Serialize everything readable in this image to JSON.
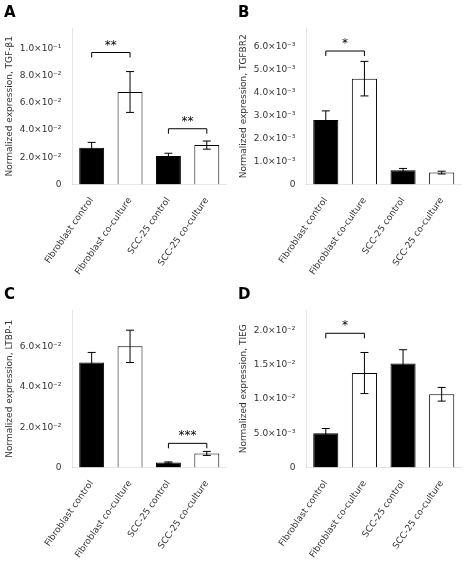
{
  "chart_data": [
    {
      "type": "bar",
      "title": "A",
      "ylabel": "Normalized expression, TGF-β1",
      "categories": [
        "Fibroblast control",
        "Fibroblast co-culture",
        "SCC-25 control",
        "SCC-25 co-culture"
      ],
      "values": [
        0.027,
        0.068,
        0.021,
        0.029
      ],
      "errors": [
        0.004,
        0.015,
        0.002,
        0.003
      ],
      "colors": [
        "black",
        "white",
        "black",
        "white"
      ],
      "ylim": [
        0,
        0.115
      ],
      "yticks": [
        0,
        {
          "value": 0.02,
          "label": "2.0×10⁻²"
        },
        {
          "value": 0.04,
          "label": "4.0×10⁻²"
        },
        {
          "value": 0.06,
          "label": "6.0×10⁻²"
        },
        {
          "value": 0.08,
          "label": "8.0×10⁻²"
        },
        {
          "value": 0.1,
          "label": "1.0×10⁻¹"
        }
      ],
      "grid": false,
      "annotations": [
        {
          "text": "**",
          "from": "Fibroblast control",
          "to": "Fibroblast co-culture",
          "y": 0.097
        },
        {
          "text": "**",
          "from": "SCC-25 control",
          "to": "SCC-25 co-culture",
          "y": 0.041
        }
      ]
    },
    {
      "type": "bar",
      "title": "B",
      "ylabel": "Normalized expression, TGFBR2",
      "categories": [
        "Fibroblast control",
        "Fibroblast co-culture",
        "SCC-25 control",
        "SCC-25 co-culture"
      ],
      "values": [
        0.0028,
        0.0046,
        0.00062,
        0.00052
      ],
      "errors": [
        0.0004,
        0.00075,
        8e-05,
        6e-05
      ],
      "colors": [
        "black",
        "white",
        "black",
        "white"
      ],
      "ylim": [
        0,
        0.0068
      ],
      "yticks": [
        0,
        {
          "value": 0.001,
          "label": "1.0×10⁻³"
        },
        {
          "value": 0.002,
          "label": "2.0×10⁻³"
        },
        {
          "value": 0.003,
          "label": "3.0×10⁻³"
        },
        {
          "value": 0.004,
          "label": "4.0×10⁻³"
        },
        {
          "value": 0.005,
          "label": "5.0×10⁻³"
        },
        {
          "value": 0.006,
          "label": "6.0×10⁻³"
        }
      ],
      "grid": false,
      "annotations": [
        {
          "text": "*",
          "from": "Fibroblast control",
          "to": "Fibroblast co-culture",
          "y": 0.0058
        }
      ]
    },
    {
      "type": "bar",
      "title": "C",
      "ylabel": "Normalized expression, LTBP-1",
      "categories": [
        "Fibroblast control",
        "Fibroblast co-culture",
        "SCC-25 control",
        "SCC-25 co-culture"
      ],
      "values": [
        0.052,
        0.06,
        0.0025,
        0.007
      ],
      "errors": [
        0.005,
        0.008,
        0.0003,
        0.001
      ],
      "colors": [
        "black",
        "white",
        "black",
        "white"
      ],
      "ylim": [
        0,
        0.078
      ],
      "yticks": [
        0,
        {
          "value": 0.02,
          "label": "2.0×10⁻²"
        },
        {
          "value": 0.04,
          "label": "4.0×10⁻²"
        },
        {
          "value": 0.06,
          "label": "6.0×10⁻²"
        }
      ],
      "grid": false,
      "annotations": [
        {
          "text": "***",
          "from": "SCC-25 control",
          "to": "SCC-25 co-culture",
          "y": 0.012
        }
      ]
    },
    {
      "type": "bar",
      "title": "D",
      "ylabel": "Normalized expression, TIEG",
      "categories": [
        "Fibroblast control",
        "Fibroblast co-culture",
        "SCC-25 control",
        "SCC-25 co-culture"
      ],
      "values": [
        0.005,
        0.0138,
        0.0152,
        0.0107
      ],
      "errors": [
        0.0007,
        0.003,
        0.002,
        0.001
      ],
      "colors": [
        "black",
        "white",
        "black",
        "white"
      ],
      "ylim": [
        0,
        0.023
      ],
      "yticks": [
        0,
        {
          "value": 0.005,
          "label": "5.0×10⁻³"
        },
        {
          "value": 0.01,
          "label": "1.0×10⁻²"
        },
        {
          "value": 0.015,
          "label": "1.5×10⁻²"
        },
        {
          "value": 0.02,
          "label": "2.0×10⁻²"
        }
      ],
      "grid": false,
      "annotations": [
        {
          "text": "*",
          "from": "Fibroblast control",
          "to": "Fibroblast co-culture",
          "y": 0.0196
        }
      ]
    }
  ]
}
